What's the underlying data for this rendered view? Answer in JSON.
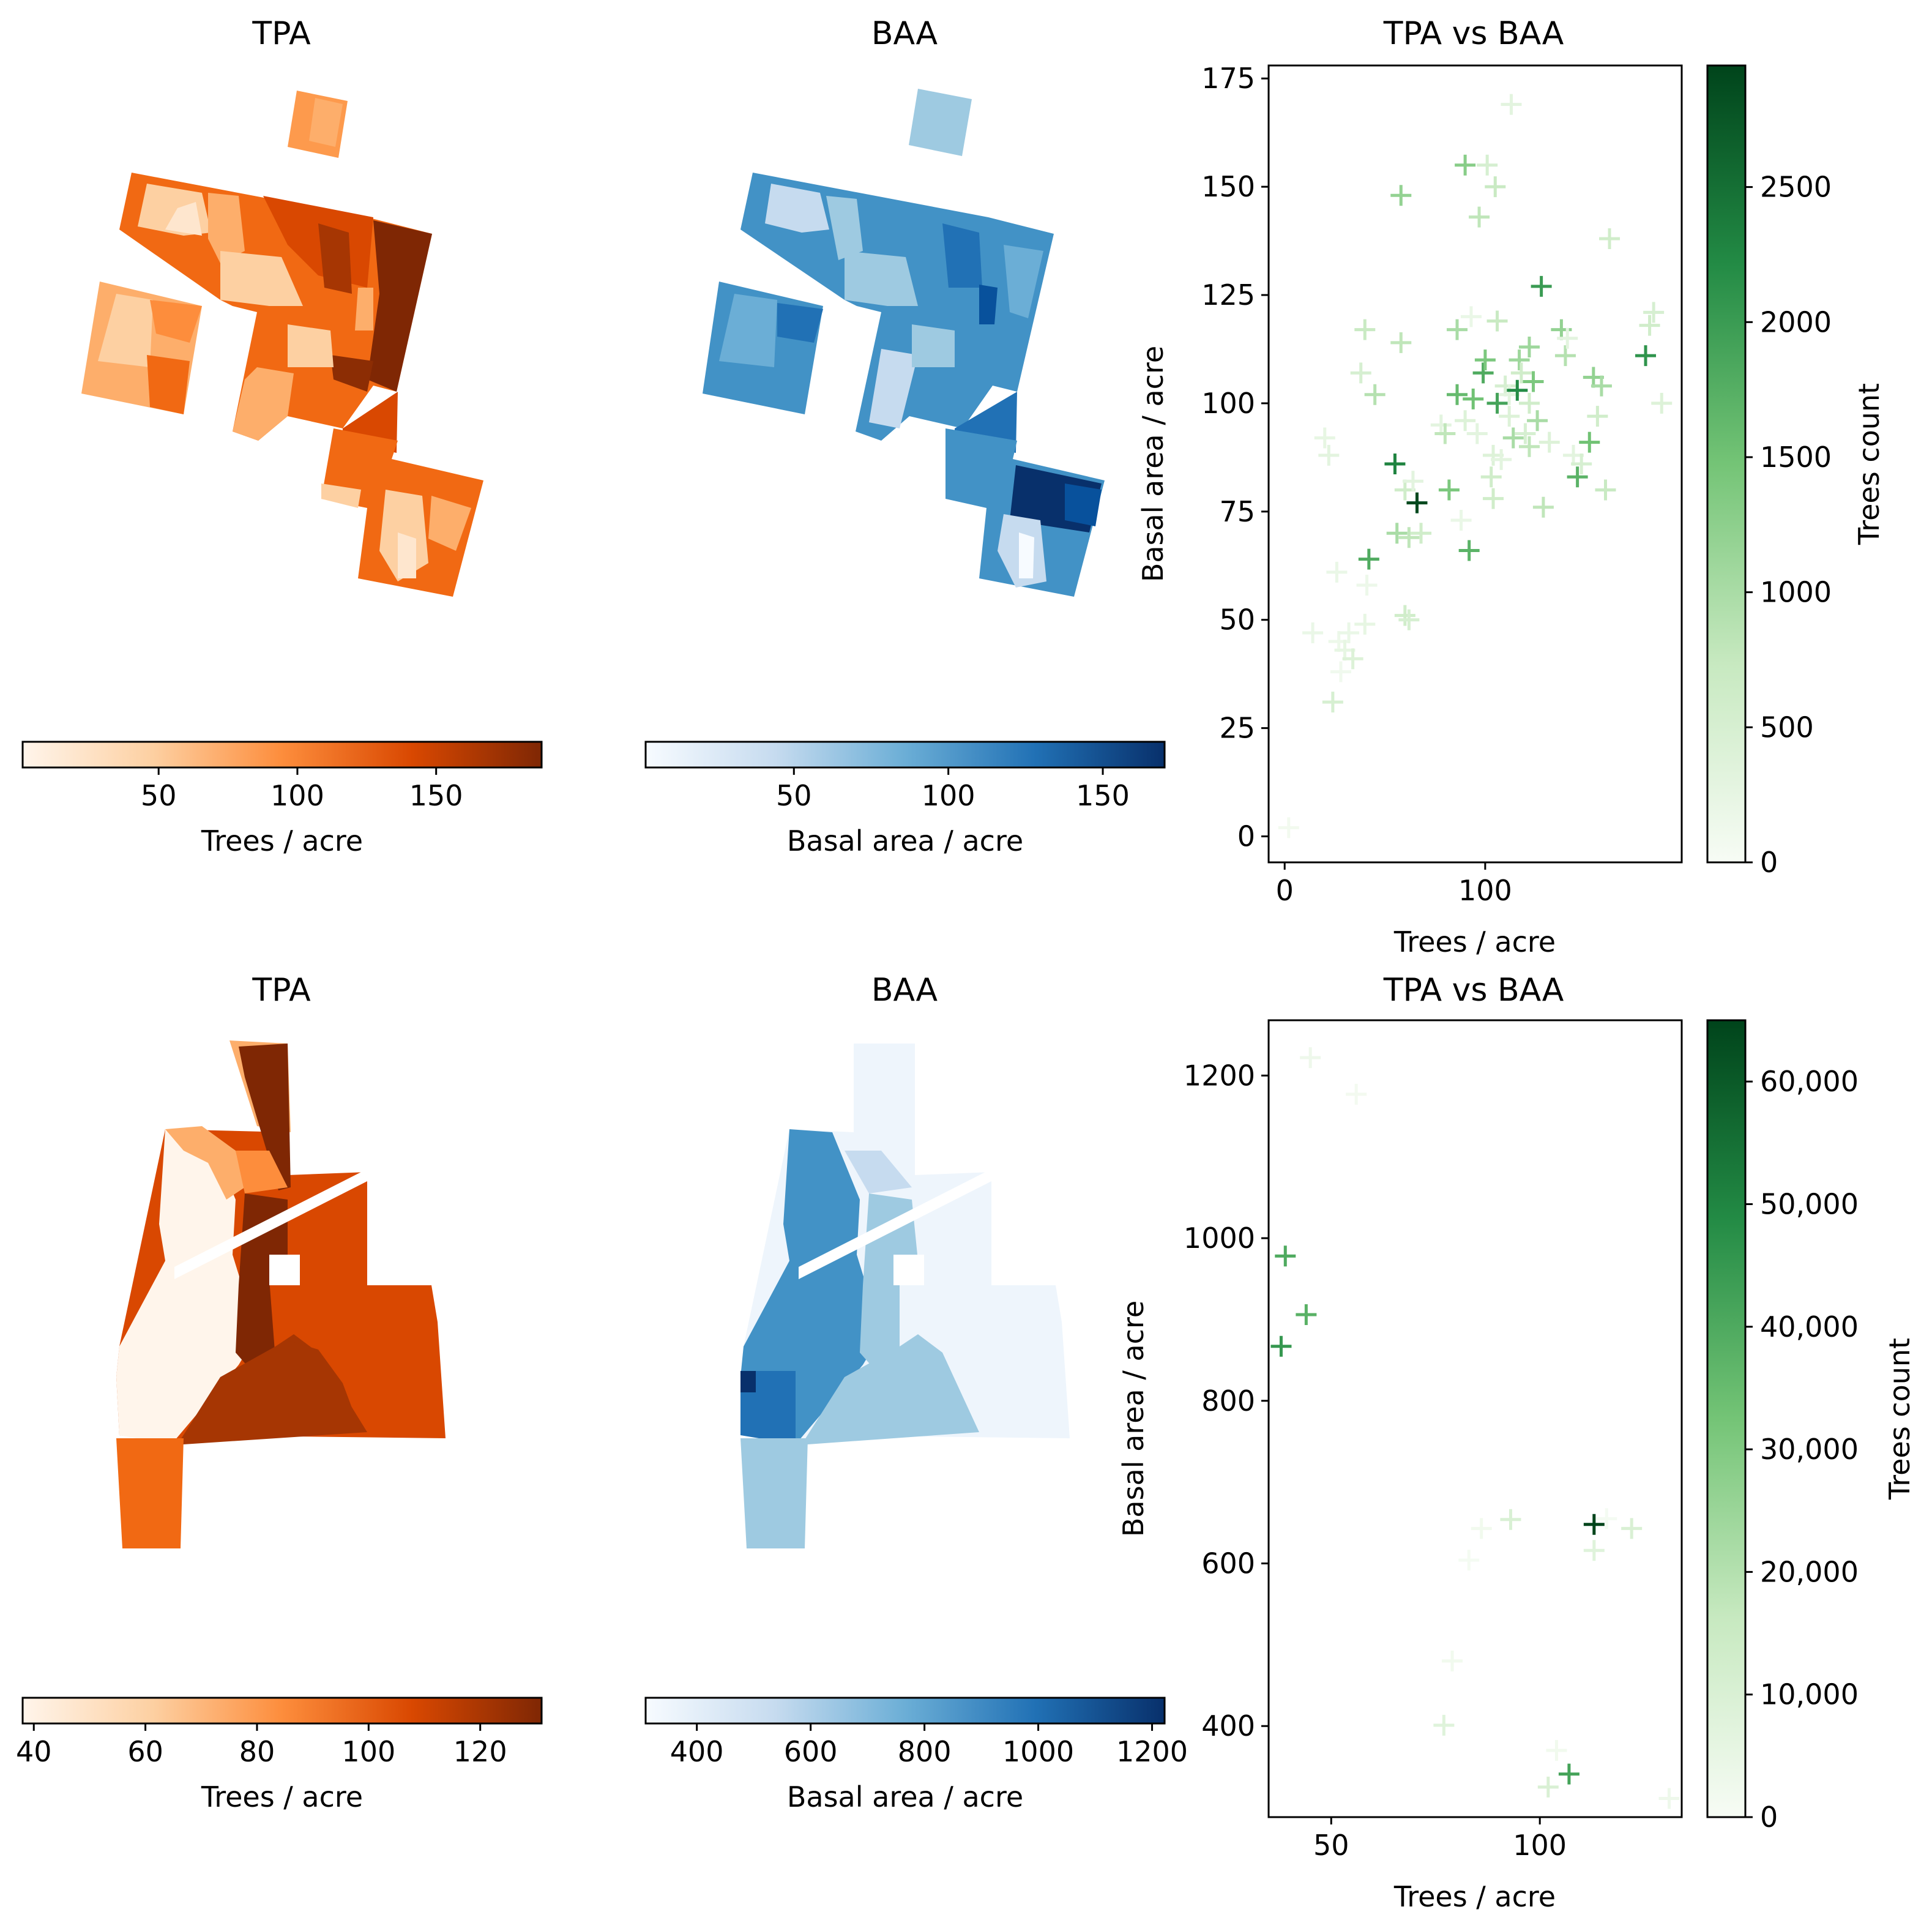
{
  "chart_data": [
    {
      "panel": "top-left",
      "type": "map",
      "title": "TPA",
      "colormap": "Oranges",
      "colorbar": {
        "label": "Trees / acre",
        "range": [
          1,
          188
        ],
        "ticks": [
          50,
          100,
          150
        ]
      }
    },
    {
      "panel": "top-middle",
      "type": "map",
      "title": "BAA",
      "colormap": "Blues",
      "colorbar": {
        "label": "Basal area / acre",
        "range": [
          2,
          170
        ],
        "ticks": [
          50,
          100,
          150
        ]
      }
    },
    {
      "panel": "top-right",
      "type": "scatter",
      "title": "TPA vs BAA",
      "marker": "+",
      "colormap": "Greens",
      "xlabel": "Trees / acre",
      "ylabel": "Basal area / acre",
      "xlim": [
        -8,
        198
      ],
      "ylim": [
        -6,
        178
      ],
      "xticks": [
        0,
        100
      ],
      "yticks": [
        0,
        25,
        50,
        75,
        100,
        125,
        150,
        175
      ],
      "colorbar": {
        "label": "Trees count",
        "range": [
          0,
          2950
        ],
        "ticks": [
          "0",
          "500",
          "1000",
          "1500",
          "2000",
          "2500"
        ]
      },
      "points": [
        [
          2,
          2,
          80
        ],
        [
          14,
          47,
          200
        ],
        [
          20,
          92,
          250
        ],
        [
          22,
          88,
          300
        ],
        [
          24,
          31,
          500
        ],
        [
          26,
          61,
          200
        ],
        [
          27,
          45,
          150
        ],
        [
          28,
          38,
          100
        ],
        [
          30,
          43,
          250
        ],
        [
          32,
          47,
          200
        ],
        [
          34,
          41,
          400
        ],
        [
          38,
          107,
          500
        ],
        [
          40,
          117,
          700
        ],
        [
          40,
          49,
          250
        ],
        [
          41,
          58,
          150
        ],
        [
          42,
          64,
          1800
        ],
        [
          45,
          102,
          900
        ],
        [
          55,
          86,
          2300
        ],
        [
          56,
          70,
          1000
        ],
        [
          58,
          148,
          1200
        ],
        [
          58,
          114,
          800
        ],
        [
          60,
          51,
          600
        ],
        [
          60,
          80,
          600
        ],
        [
          62,
          69,
          800
        ],
        [
          62,
          50,
          500
        ],
        [
          64,
          82,
          300
        ],
        [
          66,
          77,
          2900
        ],
        [
          68,
          70,
          600
        ],
        [
          78,
          95,
          300
        ],
        [
          80,
          93,
          800
        ],
        [
          82,
          80,
          1400
        ],
        [
          86,
          117,
          1000
        ],
        [
          86,
          102,
          1600
        ],
        [
          88,
          73,
          200
        ],
        [
          90,
          155,
          1300
        ],
        [
          90,
          96,
          400
        ],
        [
          92,
          66,
          1700
        ],
        [
          93,
          120,
          200
        ],
        [
          94,
          101,
          1500
        ],
        [
          96,
          93,
          300
        ],
        [
          97,
          143,
          800
        ],
        [
          99,
          107,
          1800
        ],
        [
          100,
          110,
          1400
        ],
        [
          101,
          155,
          500
        ],
        [
          103,
          83,
          600
        ],
        [
          104,
          88,
          400
        ],
        [
          104,
          78,
          600
        ],
        [
          105,
          150,
          700
        ],
        [
          106,
          119,
          700
        ],
        [
          106,
          100,
          1900
        ],
        [
          108,
          87,
          300
        ],
        [
          110,
          104,
          500
        ],
        [
          112,
          102,
          300
        ],
        [
          112,
          97,
          400
        ],
        [
          113,
          169,
          300
        ],
        [
          114,
          92,
          1000
        ],
        [
          116,
          103,
          2200
        ],
        [
          117,
          110,
          1100
        ],
        [
          118,
          107,
          600
        ],
        [
          120,
          93,
          500
        ],
        [
          122,
          90,
          800
        ],
        [
          122,
          100,
          600
        ],
        [
          122,
          113,
          1100
        ],
        [
          124,
          105,
          1400
        ],
        [
          126,
          96,
          1000
        ],
        [
          128,
          127,
          2000
        ],
        [
          129,
          76,
          800
        ],
        [
          132,
          91,
          400
        ],
        [
          138,
          117,
          1200
        ],
        [
          140,
          111,
          900
        ],
        [
          141,
          115,
          300
        ],
        [
          144,
          88,
          300
        ],
        [
          146,
          83,
          1700
        ],
        [
          148,
          86,
          500
        ],
        [
          152,
          91,
          1500
        ],
        [
          154,
          106,
          1200
        ],
        [
          156,
          97,
          600
        ],
        [
          158,
          104,
          1000
        ],
        [
          160,
          80,
          700
        ],
        [
          162,
          138,
          600
        ],
        [
          180,
          111,
          2100
        ],
        [
          182,
          118,
          600
        ],
        [
          184,
          121,
          500
        ],
        [
          188,
          100,
          400
        ]
      ]
    },
    {
      "panel": "bottom-left",
      "type": "map",
      "title": "TPA",
      "colormap": "Oranges",
      "colorbar": {
        "label": "Trees / acre",
        "range": [
          38,
          131
        ],
        "ticks": [
          40,
          60,
          80,
          100,
          120
        ]
      }
    },
    {
      "panel": "bottom-middle",
      "type": "map",
      "title": "BAA",
      "colormap": "Blues",
      "colorbar": {
        "label": "Basal area / acre",
        "range": [
          310,
          1222
        ],
        "ticks": [
          400,
          600,
          800,
          1000,
          1200
        ]
      }
    },
    {
      "panel": "bottom-right",
      "type": "scatter",
      "title": "TPA vs BAA",
      "marker": "+",
      "colormap": "Greens",
      "xlabel": "Trees / acre",
      "ylabel": "Basal area / acre",
      "xlim": [
        35,
        134
      ],
      "ylim": [
        288,
        1268
      ],
      "xticks": [
        50,
        100
      ],
      "yticks": [
        400,
        600,
        800,
        1000,
        1200
      ],
      "colorbar": {
        "label": "Trees count",
        "range": [
          0,
          65000
        ],
        "ticks": [
          "0",
          "10,000",
          "20,000",
          "30,000",
          "40,000",
          "50,000",
          "60,000"
        ]
      },
      "points": [
        [
          38,
          867,
          45000
        ],
        [
          39,
          978,
          40000
        ],
        [
          44,
          906,
          38000
        ],
        [
          45,
          1222,
          3000
        ],
        [
          56,
          1177,
          1500
        ],
        [
          77,
          401,
          8000
        ],
        [
          79,
          480,
          2000
        ],
        [
          83,
          604,
          1000
        ],
        [
          86,
          643,
          2000
        ],
        [
          93,
          654,
          10000
        ],
        [
          102,
          325,
          10000
        ],
        [
          104,
          370,
          2000
        ],
        [
          107,
          341,
          42000
        ],
        [
          113,
          648,
          65000
        ],
        [
          113,
          616,
          8000
        ],
        [
          116,
          655,
          1000
        ],
        [
          122,
          643,
          10000
        ],
        [
          131,
          311,
          3000
        ]
      ]
    }
  ]
}
